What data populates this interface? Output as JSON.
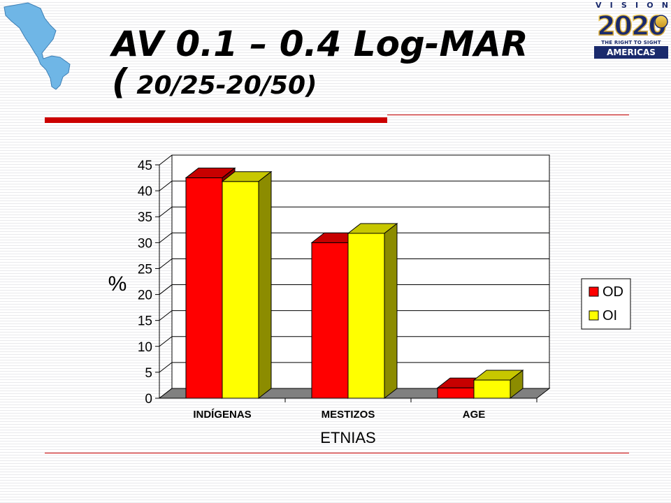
{
  "title": {
    "line1": "AV 0.1 – 0.4 Log-MAR",
    "paren": "(",
    "line2": " 20/25-20/50)"
  },
  "logo": {
    "vision_letters": [
      "V",
      "I",
      "S",
      "I",
      "O",
      "N"
    ],
    "year": "2020",
    "tagline": "THE RIGHT TO SIGHT",
    "region": "AMERICAS"
  },
  "colors": {
    "accent_red": "#cc0000",
    "series_od": "#ff0000",
    "series_oi": "#ffff00",
    "logo_blue": "#1a2a6c",
    "map_blue": "#6fb6e6"
  },
  "icons": {
    "map": "americas-map-icon",
    "logo": "vision-2020-logo"
  },
  "chart_data": {
    "type": "bar",
    "style": "3d-clustered",
    "categories": [
      "INDÍGENAS",
      "MESTIZOS",
      "AGE"
    ],
    "series": [
      {
        "name": "OD",
        "values": [
          42.5,
          30,
          2
        ]
      },
      {
        "name": "OI",
        "values": [
          41.8,
          31.8,
          3.5
        ]
      }
    ],
    "xlabel": "ETNIAS",
    "ylabel": "%",
    "ylim": [
      0,
      45
    ],
    "yticks": [
      0,
      5,
      10,
      15,
      20,
      25,
      30,
      35,
      40,
      45
    ],
    "grid": true,
    "legend": "right"
  }
}
